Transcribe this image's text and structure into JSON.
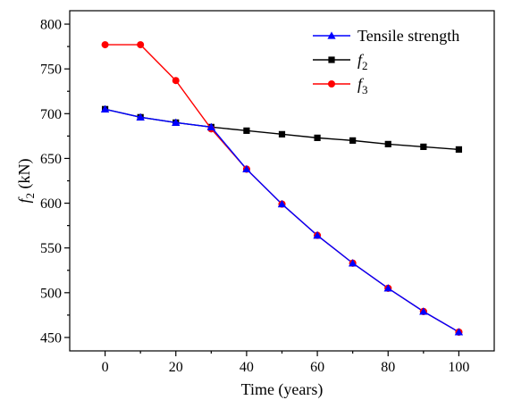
{
  "chart_data": {
    "type": "line",
    "title": "",
    "xlabel": "Time (years)",
    "ylabel": {
      "main": "f",
      "sub": "2",
      "unit": " (kN)"
    },
    "xlim": [
      -10,
      110
    ],
    "ylim": [
      435,
      815
    ],
    "x_ticks": [
      0,
      20,
      40,
      60,
      80,
      100
    ],
    "x_minor_ticks": [
      -10,
      10,
      30,
      50,
      70,
      90,
      110
    ],
    "y_ticks": [
      450,
      500,
      550,
      600,
      650,
      700,
      750,
      800
    ],
    "y_minor_ticks": [
      475,
      525,
      575,
      625,
      675,
      725,
      775
    ],
    "x_tick_labels": [
      "0",
      "20",
      "40",
      "60",
      "80",
      "100"
    ],
    "y_tick_labels": [
      "450",
      "500",
      "550",
      "600",
      "650",
      "700",
      "750",
      "800"
    ],
    "grid": false,
    "legend_position": "top-right",
    "x": [
      0,
      10,
      20,
      30,
      40,
      50,
      60,
      70,
      80,
      90,
      100
    ],
    "series": [
      {
        "name": "Tensile strength",
        "label_main": "Tensile strength",
        "label_sub": "",
        "italic": false,
        "color": "#0000ff",
        "marker": "triangle",
        "marker_color": "#0000ff",
        "x": [
          0,
          10,
          20,
          30,
          40,
          50,
          60,
          70,
          80,
          90,
          100
        ],
        "values": [
          705,
          696,
          690,
          685,
          638,
          599,
          564,
          533,
          505,
          479,
          456
        ]
      },
      {
        "name": "f2",
        "label_main": "f",
        "label_sub": "2",
        "italic": true,
        "color": "#000000",
        "marker": "square",
        "marker_color": "#000000",
        "x": [
          0,
          10,
          20,
          30,
          40,
          50,
          60,
          70,
          80,
          90,
          100
        ],
        "values": [
          705,
          696,
          690,
          685,
          681,
          677,
          673,
          670,
          666,
          663,
          660
        ]
      },
      {
        "name": "f3",
        "label_main": "f",
        "label_sub": "3",
        "italic": true,
        "color": "#ff0000",
        "marker": "circle",
        "marker_color": "#ff0000",
        "x": [
          0,
          10,
          20,
          30,
          40,
          50,
          60,
          70,
          80,
          90,
          100
        ],
        "values": [
          777,
          777,
          737,
          683,
          638,
          599,
          564,
          533,
          505,
          479,
          456
        ]
      }
    ],
    "draw_order": [
      1,
      2,
      0
    ],
    "overlay_markers": [
      {
        "series": 2,
        "color": "#ff0000",
        "marker": "circle",
        "indices": [
          4,
          5,
          6,
          7,
          8,
          9,
          10
        ]
      },
      {
        "series": 0,
        "color": "#0000ff",
        "marker": "triangle",
        "indices": [
          0,
          1,
          2,
          3,
          4,
          5,
          6,
          7,
          8,
          9,
          10
        ]
      }
    ]
  }
}
